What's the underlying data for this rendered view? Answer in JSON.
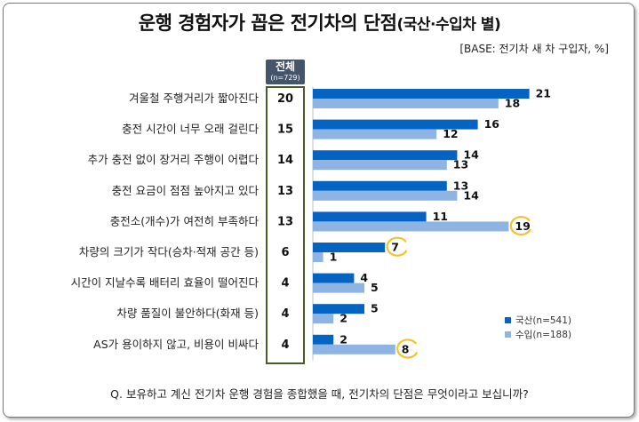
{
  "header": {
    "title_main": "운행 경험자가 꼽은 전기차의 단점",
    "title_sub": "(국산·수입차 별)",
    "base_note": "[BASE: 전기차 새 차 구입자, %]"
  },
  "total_column": {
    "label": "전체",
    "n_label": "(n=729)"
  },
  "question": "Q. 보유하고 계신 전기차 운행 경험을 종합했을 때, 전기차의 단점은 무엇이라고 보십니까?",
  "colors": {
    "domestic": "#0563c1",
    "imported": "#8eb4e3",
    "highlight_ring": "#f2c230",
    "total_box_border": "#4a5a2a",
    "total_header_bg": "#44546a"
  },
  "chart_data": {
    "type": "bar",
    "orientation": "horizontal",
    "title": "운행 경험자가 꼽은 전기차의 단점(국산·수입차 별)",
    "categories": [
      "겨울철 주행거리가 짧아진다",
      "충전 시간이 너무 오래 걸린다",
      "추가 충전 없이 장거리 주행이 어렵다",
      "충전 요금이 점점 높아지고 있다",
      "충전소(개수)가 여전히 부족하다",
      "차량의 크기가 작다(승차·적재 공간 등)",
      "시간이 지날수록 배터리 효율이 떨어진다",
      "차량 품질이 불안하다(화재 등)",
      "AS가 용이하지 않고, 비용이 비싸다"
    ],
    "total": [
      20,
      15,
      14,
      13,
      13,
      6,
      4,
      4,
      4
    ],
    "series": [
      {
        "name": "국산(n=541)",
        "values": [
          21,
          16,
          14,
          13,
          11,
          7,
          4,
          5,
          2
        ]
      },
      {
        "name": "수입(n=188)",
        "values": [
          18,
          12,
          13,
          14,
          19,
          1,
          5,
          2,
          8
        ]
      }
    ],
    "highlighted": [
      {
        "series": 0,
        "index": 5
      },
      {
        "series": 1,
        "index": 4
      },
      {
        "series": 1,
        "index": 8
      }
    ],
    "xlim": [
      0,
      22
    ],
    "grid": false,
    "legend_position": "bottom-right"
  }
}
